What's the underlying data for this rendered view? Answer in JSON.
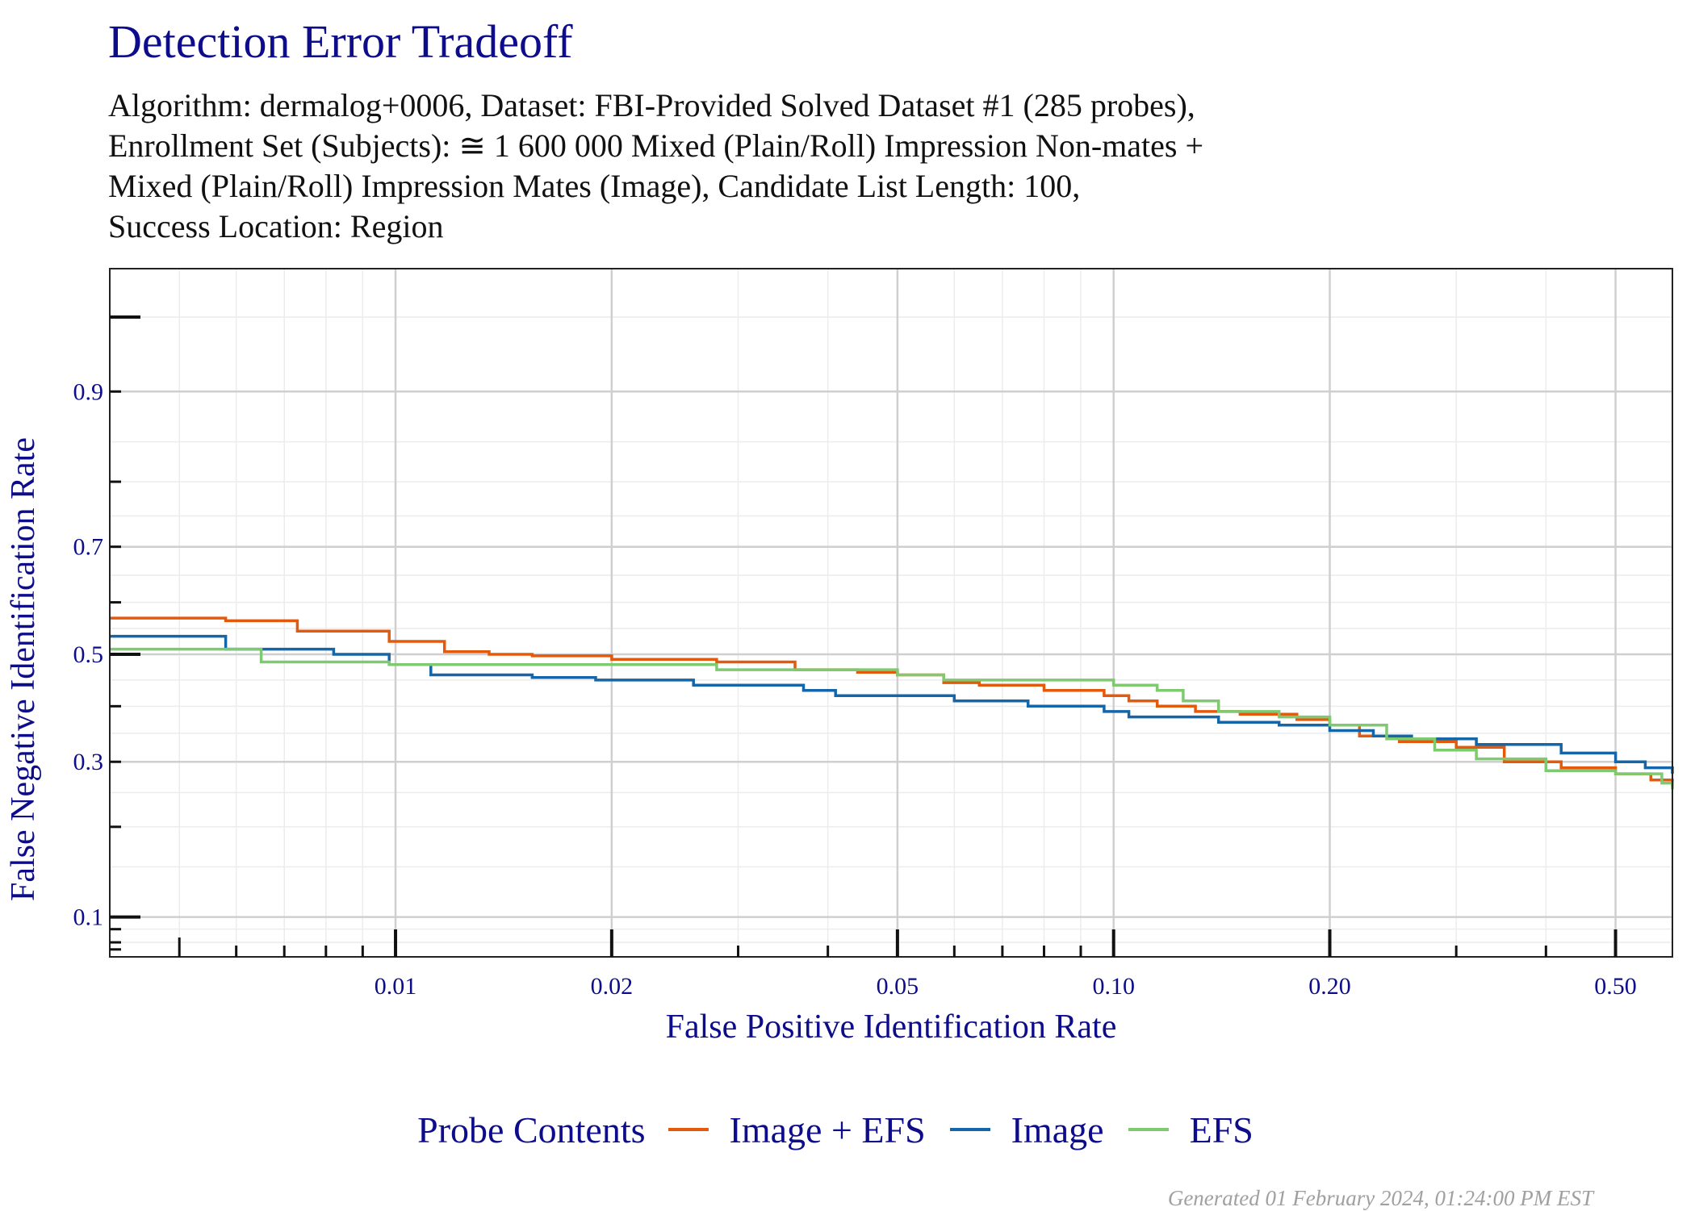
{
  "title": "Detection Error Tradeoff",
  "subtitle_lines": [
    "Algorithm: dermalog+0006, Dataset: FBI-Provided Solved Dataset #1 (285 probes),",
    "Enrollment Set (Subjects): ≅ 1 600 000 Mixed (Plain/Roll) Impression Non-mates +",
    "Mixed (Plain/Roll) Impression Mates (Image), Candidate List Length: 100,",
    "Success Location: Region"
  ],
  "footer": "Generated 01 February 2024, 01:24:00 PM EST",
  "legend": {
    "title": "Probe Contents",
    "items": [
      {
        "label": "Image + EFS",
        "color": "#e35a0d"
      },
      {
        "label": "Image",
        "color": "#1466a8"
      },
      {
        "label": "EFS",
        "color": "#7fca70"
      }
    ]
  },
  "chart_data": {
    "type": "line",
    "xlabel": "False Positive Identification Rate",
    "ylabel": "False Negative Identification Rate",
    "x_scale": "log",
    "y_scale": "probit",
    "xlim": [
      0.004,
      0.6
    ],
    "ylim": [
      0.07,
      0.97
    ],
    "x_ticks": [
      0.01,
      0.02,
      0.05,
      0.1,
      0.2,
      0.5
    ],
    "x_tick_labels": [
      "0.01",
      "0.02",
      "0.05",
      "0.10",
      "0.20",
      "0.50"
    ],
    "y_ticks": [
      0.1,
      0.3,
      0.5,
      0.7,
      0.9
    ],
    "y_tick_labels": [
      "0.1",
      "0.3",
      "0.5",
      "0.7",
      "0.9"
    ],
    "grid": true,
    "step": true,
    "series": [
      {
        "name": "Image + EFS",
        "color": "#e35a0d",
        "x": [
          0.004,
          0.0058,
          0.0073,
          0.0098,
          0.0117,
          0.0135,
          0.0155,
          0.02,
          0.028,
          0.036,
          0.044,
          0.05,
          0.058,
          0.065,
          0.08,
          0.097,
          0.105,
          0.115,
          0.13,
          0.15,
          0.18,
          0.2,
          0.22,
          0.25,
          0.3,
          0.35,
          0.42,
          0.5,
          0.56,
          0.6
        ],
        "y": [
          0.57,
          0.565,
          0.545,
          0.525,
          0.505,
          0.5,
          0.497,
          0.49,
          0.485,
          0.47,
          0.465,
          0.46,
          0.445,
          0.44,
          0.43,
          0.42,
          0.41,
          0.4,
          0.39,
          0.385,
          0.375,
          0.365,
          0.345,
          0.335,
          0.325,
          0.3,
          0.29,
          0.28,
          0.27,
          0.26
        ]
      },
      {
        "name": "Image",
        "color": "#1466a8",
        "x": [
          0.004,
          0.0058,
          0.0067,
          0.0082,
          0.0098,
          0.0112,
          0.0155,
          0.019,
          0.026,
          0.037,
          0.041,
          0.06,
          0.076,
          0.097,
          0.105,
          0.14,
          0.17,
          0.2,
          0.23,
          0.26,
          0.32,
          0.42,
          0.5,
          0.55,
          0.6
        ],
        "y": [
          0.535,
          0.51,
          0.51,
          0.5,
          0.48,
          0.46,
          0.455,
          0.45,
          0.44,
          0.43,
          0.42,
          0.41,
          0.4,
          0.39,
          0.38,
          0.37,
          0.365,
          0.355,
          0.345,
          0.34,
          0.33,
          0.315,
          0.3,
          0.29,
          0.28
        ]
      },
      {
        "name": "EFS",
        "color": "#7fca70",
        "x": [
          0.004,
          0.0065,
          0.0098,
          0.0112,
          0.02,
          0.028,
          0.035,
          0.05,
          0.058,
          0.1,
          0.115,
          0.125,
          0.14,
          0.17,
          0.2,
          0.24,
          0.28,
          0.32,
          0.4,
          0.5,
          0.58,
          0.6
        ],
        "y": [
          0.51,
          0.485,
          0.48,
          0.48,
          0.48,
          0.47,
          0.47,
          0.46,
          0.45,
          0.44,
          0.43,
          0.41,
          0.39,
          0.38,
          0.365,
          0.34,
          0.32,
          0.305,
          0.285,
          0.28,
          0.265,
          0.255
        ]
      }
    ]
  }
}
